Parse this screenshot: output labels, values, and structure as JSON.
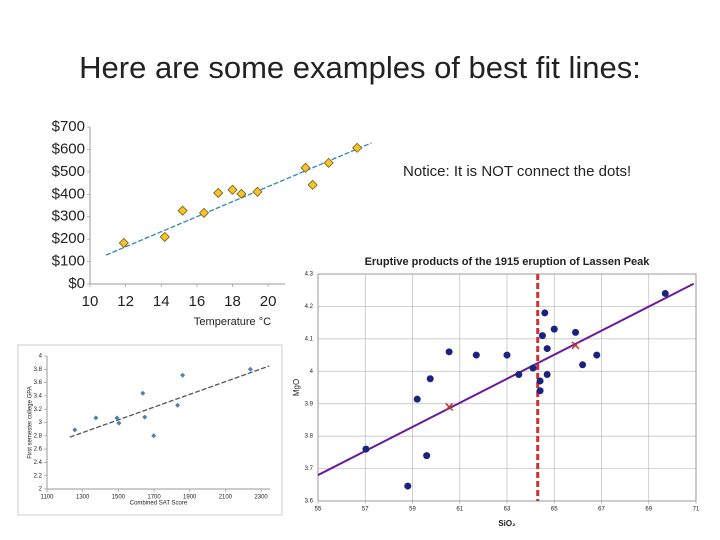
{
  "title": "Here are some examples of best fit lines:",
  "notice": "Notice: It is NOT connect the dots!",
  "chart_data": [
    {
      "type": "scatter",
      "xlabel": "Temperature °C",
      "marker": "diamond",
      "color": "#f4c430",
      "line_color": "#2e86c1",
      "x": [
        11.9,
        14.2,
        15.2,
        16.4,
        17.2,
        18.0,
        18.5,
        19.4,
        22.1,
        22.5,
        23.4,
        25.0
      ],
      "y": [
        183,
        210,
        327,
        317,
        406,
        420,
        402,
        411,
        518,
        442,
        540,
        607
      ],
      "trend_x": [
        10.9,
        25.8
      ],
      "trend_y": [
        129,
        629
      ],
      "xlim": [
        10,
        26
      ],
      "ylim": [
        0,
        700
      ],
      "xticks": [
        10,
        12,
        14,
        16,
        18,
        20
      ],
      "yticks": [
        {
          "value": 0,
          "label": "$0"
        },
        {
          "value": 100,
          "label": "$100"
        },
        {
          "value": 200,
          "label": "$200"
        },
        {
          "value": 300,
          "label": "$300"
        },
        {
          "value": 400,
          "label": "$400"
        },
        {
          "value": 500,
          "label": "$500"
        },
        {
          "value": 600,
          "label": "$600"
        },
        {
          "value": 700,
          "label": "$700"
        }
      ],
      "grid": false
    },
    {
      "type": "scatter",
      "xlabel": "Combined SAT Score",
      "ylabel": "First semester college GPA",
      "marker": "diamond",
      "color": "#4f7fb5",
      "line_color": "#555555",
      "x": [
        1256,
        1374,
        1492,
        1503,
        1637,
        1648,
        1698,
        1832,
        1860,
        2240
      ],
      "y": [
        2.89,
        3.07,
        3.07,
        2.99,
        3.44,
        3.08,
        2.8,
        3.26,
        3.71,
        3.8
      ],
      "trend_x": [
        1228,
        2346
      ],
      "trend_y": [
        2.78,
        3.85
      ],
      "xlim": [
        1100,
        2350
      ],
      "ylim": [
        2,
        4
      ],
      "xticks": [
        1100,
        1300,
        1500,
        1700,
        1900,
        2100,
        2300
      ],
      "yticks": [
        2,
        2.2,
        2.4,
        2.6,
        2.8,
        3,
        3.2,
        3.4,
        3.6,
        3.8,
        4
      ],
      "grid": false
    },
    {
      "type": "scatter",
      "title": "Eruptive products of the 1915 eruption of Lassen Peak",
      "xlabel": "SiO₂",
      "ylabel": "MgO",
      "marker": "circle",
      "color": "#1a237e",
      "line_color": "#6a1b9a",
      "x": [
        58.8,
        57.03,
        59.2,
        59.6,
        59.75,
        60.55,
        61.7,
        63.0,
        63.5,
        64.1,
        64.6,
        64.5,
        65.0,
        64.7,
        64.7,
        64.4,
        64.4,
        65.9,
        66.2,
        66.8,
        69.7
      ],
      "y": [
        3.646,
        3.76,
        3.914,
        3.74,
        3.977,
        4.06,
        4.05,
        4.05,
        3.99,
        4.01,
        4.18,
        4.11,
        4.13,
        4.07,
        3.99,
        3.97,
        3.94,
        4.12,
        4.02,
        4.05,
        4.24
      ],
      "marker_x": [
        60.55,
        65.9
      ],
      "marker_y": [
        3.89,
        4.08
      ],
      "marker_color": "#c0392b",
      "trend_x": [
        55,
        70.9
      ],
      "trend_y": [
        3.68,
        4.27
      ],
      "vline": 64.3,
      "vline_color": "#d32f2f",
      "xlim": [
        55,
        71
      ],
      "ylim": [
        3.6,
        4.3
      ],
      "xticks": [
        55,
        57,
        59,
        61,
        63,
        65,
        67,
        69,
        71
      ],
      "yticks": [
        3.6,
        3.7,
        3.8,
        3.9,
        4,
        4.1,
        4.2,
        4.3
      ],
      "grid": true
    }
  ]
}
